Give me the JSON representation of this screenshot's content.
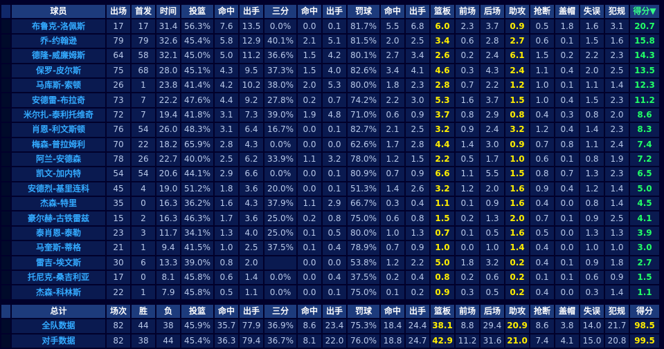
{
  "headers": [
    "球员",
    "出场",
    "首发",
    "时间",
    "投篮",
    "命中",
    "出手",
    "三分",
    "命中",
    "出手",
    "罚球",
    "命中",
    "出手",
    "篮板",
    "前场",
    "后场",
    "助攻",
    "抢断",
    "盖帽",
    "失误",
    "犯规",
    "得分▼"
  ],
  "players": [
    {
      "name": "布鲁克-洛佩斯",
      "stats": [
        "17",
        "17",
        "31.4",
        "56.3%",
        "7.6",
        "13.5",
        "0.0%",
        "0.0",
        "0.1",
        "81.7%",
        "5.5",
        "6.8",
        "6.0",
        "2.3",
        "3.7",
        "0.9",
        "0.5",
        "1.8",
        "1.6",
        "3.1",
        "20.7"
      ]
    },
    {
      "name": "乔-约翰逊",
      "stats": [
        "79",
        "79",
        "32.6",
        "45.4%",
        "5.8",
        "12.9",
        "40.1%",
        "2.1",
        "5.1",
        "81.5%",
        "2.0",
        "2.5",
        "3.4",
        "0.6",
        "2.8",
        "2.7",
        "0.6",
        "0.1",
        "1.5",
        "1.6",
        "15.8"
      ]
    },
    {
      "name": "德隆-威廉姆斯",
      "stats": [
        "64",
        "58",
        "32.1",
        "45.0%",
        "5.0",
        "11.2",
        "36.6%",
        "1.5",
        "4.2",
        "80.1%",
        "2.7",
        "3.4",
        "2.6",
        "0.2",
        "2.4",
        "6.1",
        "1.5",
        "0.2",
        "2.2",
        "2.3",
        "14.3"
      ]
    },
    {
      "name": "保罗-皮尔斯",
      "stats": [
        "75",
        "68",
        "28.0",
        "45.1%",
        "4.3",
        "9.5",
        "37.3%",
        "1.5",
        "4.0",
        "82.6%",
        "3.4",
        "4.1",
        "4.6",
        "0.3",
        "4.3",
        "2.4",
        "1.1",
        "0.4",
        "2.0",
        "2.5",
        "13.5"
      ]
    },
    {
      "name": "马库斯-索顿",
      "stats": [
        "26",
        "1",
        "23.8",
        "41.4%",
        "4.2",
        "10.2",
        "38.0%",
        "2.0",
        "5.3",
        "80.0%",
        "1.8",
        "2.3",
        "2.8",
        "0.7",
        "2.2",
        "1.2",
        "1.0",
        "0.1",
        "1.1",
        "1.4",
        "12.3"
      ]
    },
    {
      "name": "安德雷-布拉奇",
      "stats": [
        "73",
        "7",
        "22.2",
        "47.6%",
        "4.4",
        "9.2",
        "27.8%",
        "0.2",
        "0.7",
        "74.2%",
        "2.2",
        "3.0",
        "5.3",
        "1.6",
        "3.7",
        "1.5",
        "1.0",
        "0.4",
        "1.5",
        "2.3",
        "11.2"
      ]
    },
    {
      "name": "米尔扎-泰利托维奇",
      "stats": [
        "72",
        "7",
        "19.4",
        "41.8%",
        "3.1",
        "7.3",
        "39.0%",
        "1.9",
        "4.8",
        "71.0%",
        "0.6",
        "0.9",
        "3.7",
        "0.8",
        "2.9",
        "0.8",
        "0.4",
        "0.3",
        "0.8",
        "2.0",
        "8.6"
      ]
    },
    {
      "name": "肖恩-利文斯顿",
      "stats": [
        "76",
        "54",
        "26.0",
        "48.3%",
        "3.1",
        "6.4",
        "16.7%",
        "0.0",
        "0.1",
        "82.7%",
        "2.1",
        "2.5",
        "3.2",
        "0.9",
        "2.4",
        "3.2",
        "1.2",
        "0.4",
        "1.4",
        "2.3",
        "8.3"
      ]
    },
    {
      "name": "梅森-普拉姆利",
      "stats": [
        "70",
        "22",
        "18.2",
        "65.9%",
        "2.8",
        "4.3",
        "0.0%",
        "0.0",
        "0.0",
        "62.6%",
        "1.7",
        "2.8",
        "4.4",
        "1.4",
        "3.0",
        "0.9",
        "0.7",
        "0.8",
        "1.1",
        "2.4",
        "7.4"
      ]
    },
    {
      "name": "阿兰-安德森",
      "stats": [
        "78",
        "26",
        "22.7",
        "40.0%",
        "2.5",
        "6.2",
        "33.9%",
        "1.1",
        "3.2",
        "78.0%",
        "1.2",
        "1.5",
        "2.2",
        "0.5",
        "1.7",
        "1.0",
        "0.6",
        "0.1",
        "0.8",
        "1.9",
        "7.2"
      ]
    },
    {
      "name": "凯文-加内特",
      "stats": [
        "54",
        "54",
        "20.6",
        "44.1%",
        "2.9",
        "6.6",
        "0.0%",
        "0.0",
        "0.1",
        "80.9%",
        "0.7",
        "0.9",
        "6.6",
        "1.1",
        "5.5",
        "1.5",
        "0.8",
        "0.7",
        "1.3",
        "2.3",
        "6.5"
      ]
    },
    {
      "name": "安德烈-基里连科",
      "stats": [
        "45",
        "4",
        "19.0",
        "51.2%",
        "1.8",
        "3.6",
        "20.0%",
        "0.0",
        "0.1",
        "51.3%",
        "1.4",
        "2.6",
        "3.2",
        "1.2",
        "2.0",
        "1.6",
        "0.9",
        "0.4",
        "1.2",
        "1.4",
        "5.0"
      ]
    },
    {
      "name": "杰森-特里",
      "stats": [
        "35",
        "0",
        "16.3",
        "36.2%",
        "1.6",
        "4.3",
        "37.9%",
        "1.1",
        "2.9",
        "66.7%",
        "0.3",
        "0.4",
        "1.1",
        "0.1",
        "0.9",
        "1.6",
        "0.4",
        "0.0",
        "0.8",
        "1.4",
        "4.5"
      ]
    },
    {
      "name": "豪尔赫-古铁雷兹",
      "stats": [
        "15",
        "2",
        "16.3",
        "46.3%",
        "1.7",
        "3.6",
        "25.0%",
        "0.2",
        "0.8",
        "75.0%",
        "0.6",
        "0.8",
        "1.5",
        "0.2",
        "1.3",
        "2.0",
        "0.7",
        "0.1",
        "0.9",
        "2.5",
        "4.1"
      ]
    },
    {
      "name": "泰肖恩-泰勒",
      "stats": [
        "23",
        "3",
        "11.7",
        "34.1%",
        "1.3",
        "4.0",
        "25.0%",
        "0.1",
        "0.5",
        "80.0%",
        "1.0",
        "1.3",
        "0.7",
        "0.1",
        "0.5",
        "1.6",
        "0.5",
        "0.0",
        "1.3",
        "1.3",
        "3.9"
      ]
    },
    {
      "name": "马奎斯-蒂格",
      "stats": [
        "21",
        "1",
        "9.4",
        "41.5%",
        "1.0",
        "2.5",
        "37.5%",
        "0.1",
        "0.4",
        "78.9%",
        "0.7",
        "0.9",
        "1.0",
        "0.0",
        "1.0",
        "1.4",
        "0.4",
        "0.0",
        "1.0",
        "1.0",
        "3.0"
      ]
    },
    {
      "name": "雷吉-埃文斯",
      "stats": [
        "30",
        "6",
        "13.3",
        "39.0%",
        "0.8",
        "2.0",
        "",
        "0.0",
        "0.0",
        "53.8%",
        "1.2",
        "2.2",
        "5.0",
        "1.8",
        "3.2",
        "0.2",
        "0.4",
        "0.1",
        "0.9",
        "1.8",
        "2.7"
      ]
    },
    {
      "name": "托尼克-桑吉利亚",
      "stats": [
        "17",
        "0",
        "8.1",
        "45.8%",
        "0.6",
        "1.4",
        "0.0%",
        "0.0",
        "0.4",
        "37.5%",
        "0.2",
        "0.4",
        "0.8",
        "0.2",
        "0.6",
        "0.2",
        "0.1",
        "0.1",
        "0.6",
        "0.9",
        "1.5"
      ]
    },
    {
      "name": "杰森-科林斯",
      "stats": [
        "22",
        "1",
        "7.9",
        "45.8%",
        "0.5",
        "1.1",
        "0.0%",
        "0.0",
        "0.1",
        "75.0%",
        "0.1",
        "0.2",
        "0.9",
        "0.3",
        "0.5",
        "0.2",
        "0.4",
        "0.0",
        "0.3",
        "1.4",
        "1.1"
      ]
    }
  ],
  "totals_headers": [
    "总计",
    "场次",
    "胜",
    "负",
    "投篮",
    "命中",
    "出手",
    "三分",
    "命中",
    "出手",
    "罚球",
    "命中",
    "出手",
    "篮板",
    "前场",
    "后场",
    "助攻",
    "抢断",
    "盖帽",
    "失误",
    "犯规",
    "得分"
  ],
  "totals": [
    {
      "name": "全队数据",
      "stats": [
        "82",
        "44",
        "38",
        "45.9%",
        "35.7",
        "77.9",
        "36.9%",
        "8.6",
        "23.4",
        "75.3%",
        "18.4",
        "24.4",
        "38.1",
        "8.8",
        "29.4",
        "20.9",
        "8.6",
        "3.8",
        "14.0",
        "21.7",
        "98.5"
      ]
    },
    {
      "name": "对手数据",
      "stats": [
        "82",
        "38",
        "44",
        "45.4%",
        "36.3",
        "79.4",
        "36.7%",
        "8.1",
        "22.0",
        "76.0%",
        "18.8",
        "24.7",
        "42.9",
        "11.2",
        "31.6",
        "21.0",
        "7.4",
        "4.1",
        "15.0",
        "20.8",
        "99.5"
      ]
    }
  ]
}
